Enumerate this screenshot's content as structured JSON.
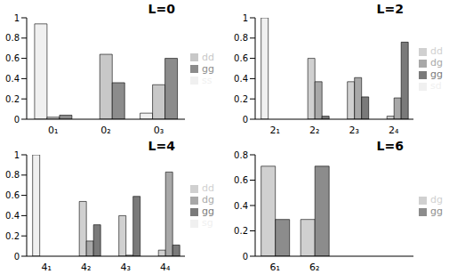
{
  "chart_data": [
    {
      "type": "bar",
      "title": "L=0",
      "categories": [
        "0₁",
        "0₂",
        "0₃"
      ],
      "ylim": [
        0,
        1
      ],
      "yticks": [
        0,
        0.2,
        0.4,
        0.6,
        0.8,
        1
      ],
      "legend": "right",
      "series": [
        {
          "name": "ss",
          "color": "#f0f0f0",
          "values": [
            0.94,
            0.0,
            0.06
          ]
        },
        {
          "name": "dd",
          "color": "#c8c8c8",
          "values": [
            0.02,
            0.64,
            0.34
          ]
        },
        {
          "name": "gg",
          "color": "#8c8c8c",
          "values": [
            0.04,
            0.36,
            0.6
          ]
        }
      ]
    },
    {
      "type": "bar",
      "title": "L=2",
      "categories": [
        "2₁",
        "2₂",
        "2₃",
        "2₄"
      ],
      "ylim": [
        0,
        1
      ],
      "yticks": [
        0,
        0.2,
        0.4,
        0.6,
        0.8,
        1
      ],
      "legend": "right",
      "series": [
        {
          "name": "sd",
          "color": "#f0f0f0",
          "values": [
            1.0,
            0,
            0,
            0
          ]
        },
        {
          "name": "dd",
          "color": "#d0d0d0",
          "values": [
            0,
            0.6,
            0.37,
            0.03
          ]
        },
        {
          "name": "dg",
          "color": "#a8a8a8",
          "values": [
            0,
            0.37,
            0.41,
            0.21
          ]
        },
        {
          "name": "gg",
          "color": "#7a7a7a",
          "values": [
            0,
            0.03,
            0.22,
            0.76
          ]
        }
      ]
    },
    {
      "type": "bar",
      "title": "L=4",
      "categories": [
        "4₁",
        "4₂",
        "4₃",
        "4₄"
      ],
      "ylim": [
        0,
        1
      ],
      "yticks": [
        0,
        0.2,
        0.4,
        0.6,
        0.8,
        1
      ],
      "legend": "right",
      "series": [
        {
          "name": "sg",
          "color": "#f0f0f0",
          "values": [
            1.0,
            0,
            0,
            0
          ]
        },
        {
          "name": "dd",
          "color": "#d0d0d0",
          "values": [
            0,
            0.54,
            0.4,
            0.06
          ]
        },
        {
          "name": "dg",
          "color": "#a8a8a8",
          "values": [
            0,
            0.15,
            0.01,
            0.83
          ]
        },
        {
          "name": "gg",
          "color": "#7a7a7a",
          "values": [
            0,
            0.31,
            0.59,
            0.11
          ]
        }
      ]
    },
    {
      "type": "bar",
      "title": "L=6",
      "categories": [
        "6₁",
        "6₂",
        null,
        null
      ],
      "ylim": [
        0,
        0.8
      ],
      "yticks": [
        0,
        0.2,
        0.4,
        0.6,
        0.8
      ],
      "legend": "right",
      "series": [
        {
          "name": "dg",
          "color": "#d0d0d0",
          "values": [
            0.71,
            0.29,
            null,
            null
          ]
        },
        {
          "name": "gg",
          "color": "#8c8c8c",
          "values": [
            0.29,
            0.71,
            null,
            null
          ]
        }
      ]
    }
  ]
}
